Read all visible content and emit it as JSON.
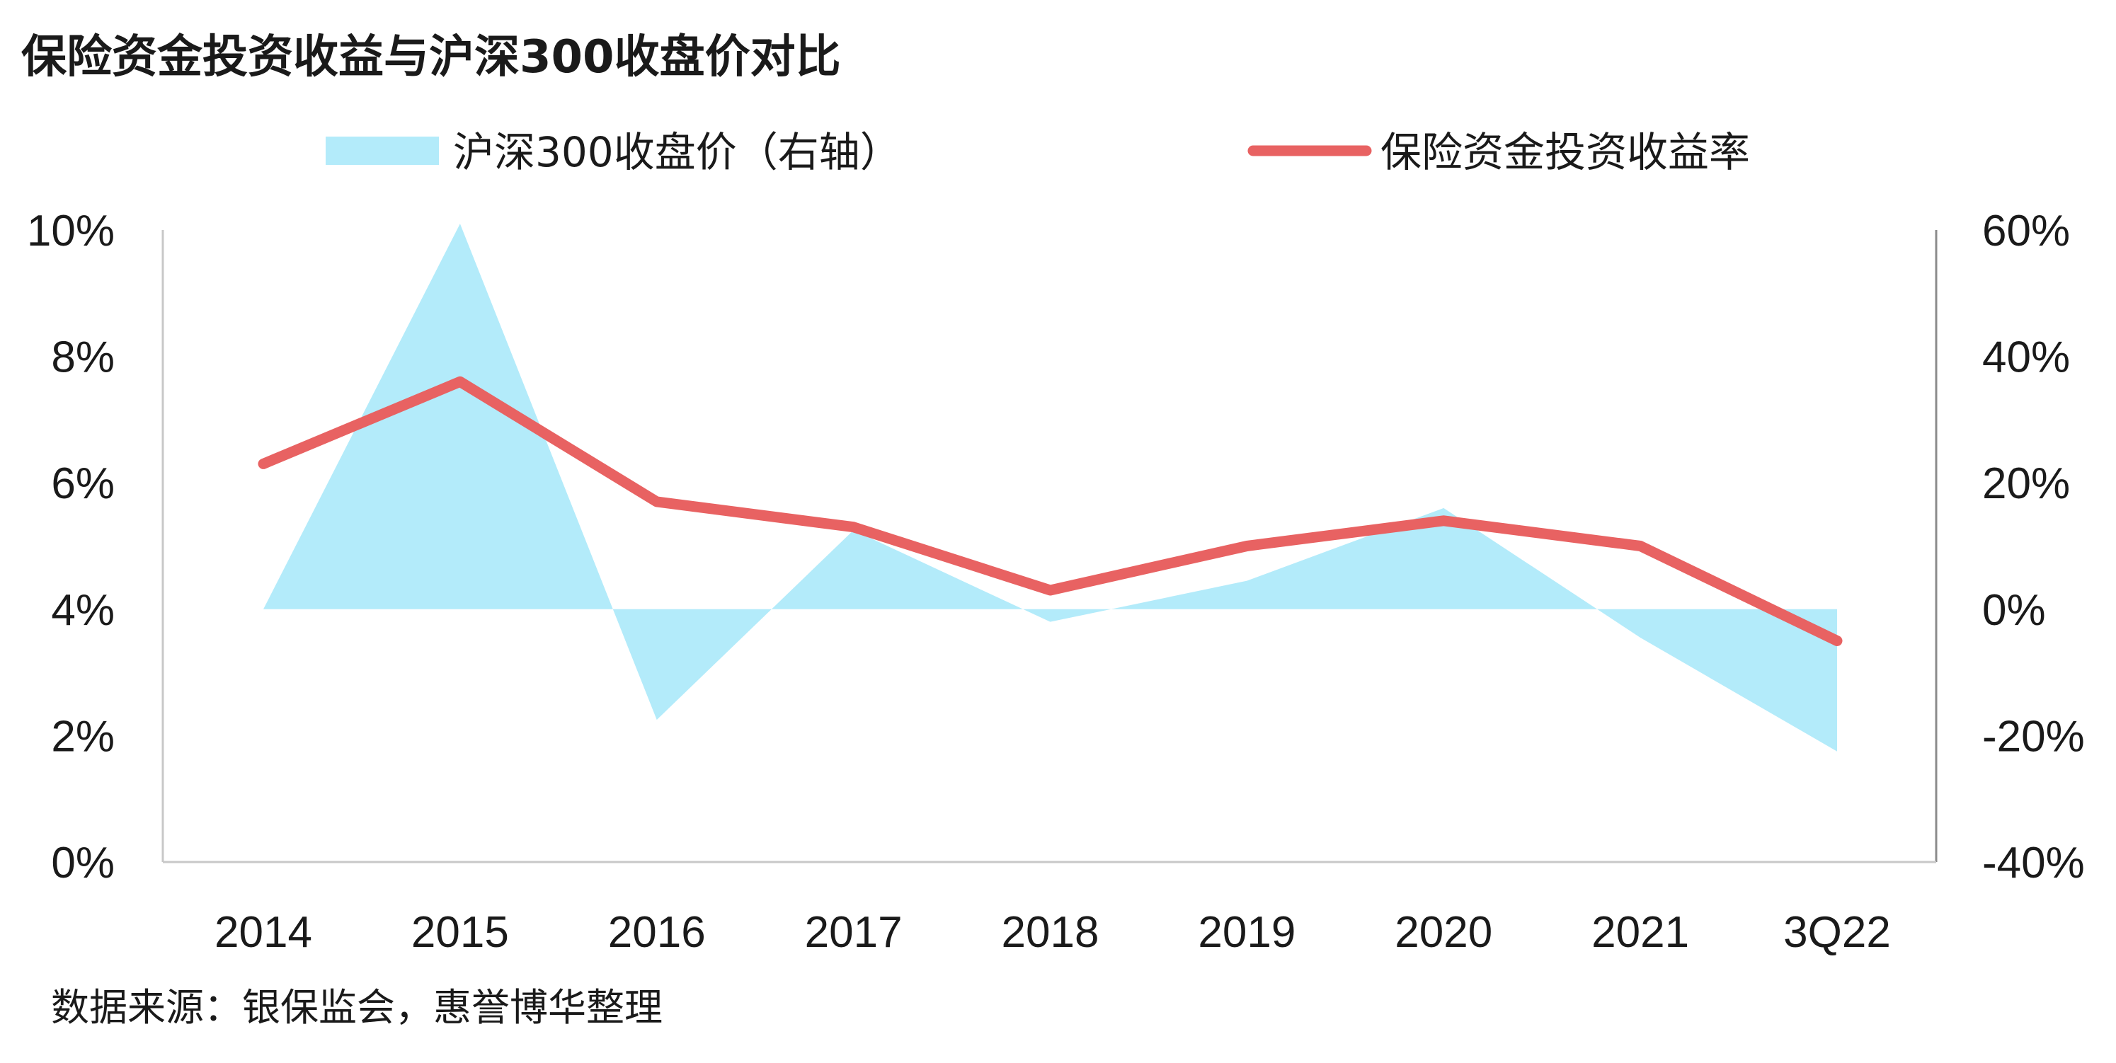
{
  "chart_data": {
    "type": "line",
    "title": "保险资金投资收益与沪深300收盘价对比",
    "categories": [
      "2014",
      "2015",
      "2016",
      "2017",
      "2018",
      "2019",
      "2020",
      "2021",
      "3Q22"
    ],
    "series": [
      {
        "name": "沪深300收盘价（右轴）",
        "chart": "area",
        "axis": "right",
        "color": "#b3ebfa",
        "values": [
          0.0,
          61.0,
          -17.5,
          12.5,
          -2.0,
          4.5,
          16.0,
          -4.5,
          -22.5
        ]
      },
      {
        "name": "保险资金投资收益率",
        "chart": "line",
        "axis": "left",
        "color": "#e86262",
        "values": [
          6.3,
          7.6,
          5.7,
          5.3,
          4.3,
          5.0,
          5.4,
          5.0,
          3.5
        ]
      }
    ],
    "left_axis": {
      "ticks": [
        "10%",
        "8%",
        "6%",
        "4%",
        "2%",
        "0%"
      ],
      "range": [
        0,
        10
      ]
    },
    "right_axis": {
      "ticks": [
        "60%",
        "40%",
        "20%",
        "0%",
        "-20%",
        "-40%"
      ],
      "range": [
        -40,
        60
      ]
    },
    "grid": false,
    "legend_position": "top",
    "source": "数据来源：银保监会，惠誉博华整理"
  }
}
